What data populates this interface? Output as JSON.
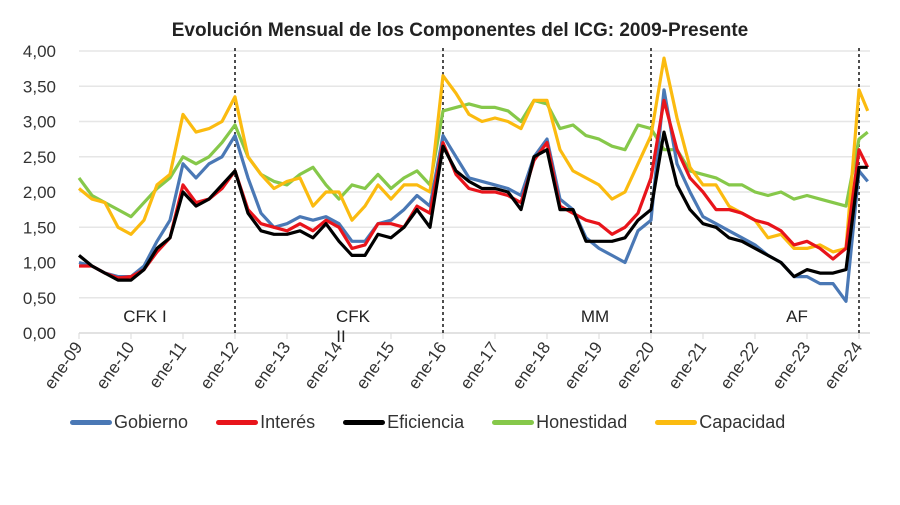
{
  "chart_data": {
    "type": "line",
    "title": "Evolución Mensual de los Componentes del ICG: 2009-Presente",
    "xlabel": "",
    "ylabel": "",
    "ylim": [
      0,
      4
    ],
    "y_ticks": [
      "0,00",
      "0,50",
      "1,00",
      "1,50",
      "2,00",
      "2,50",
      "3,00",
      "3,50",
      "4,00"
    ],
    "x_ticks": [
      "ene-09",
      "ene-10",
      "ene-11",
      "ene-12",
      "ene-13",
      "ene-14",
      "ene-15",
      "ene-16",
      "ene-17",
      "ene-18",
      "ene-19",
      "ene-20",
      "ene-21",
      "ene-22",
      "ene-23",
      "ene-24"
    ],
    "grid": true,
    "legend_position": "bottom",
    "periods": [
      {
        "label": "CFK I",
        "start": "2009-01",
        "end": "2012-01"
      },
      {
        "label": "CFK II",
        "start": "2012-01",
        "end": "2016-01"
      },
      {
        "label": "MM",
        "start": "2016-01",
        "end": "2020-01"
      },
      {
        "label": "AF",
        "start": "2020-01",
        "end": "2024-01"
      }
    ],
    "period_labels": {
      "cfk1": "CFK I",
      "cfk2a": "CFK",
      "cfk2b": "II",
      "mm": "MM",
      "af": "AF"
    },
    "x": [
      "2009-01",
      "2009-04",
      "2009-07",
      "2009-10",
      "2010-01",
      "2010-04",
      "2010-07",
      "2010-10",
      "2011-01",
      "2011-04",
      "2011-07",
      "2011-10",
      "2012-01",
      "2012-04",
      "2012-07",
      "2012-10",
      "2013-01",
      "2013-04",
      "2013-07",
      "2013-10",
      "2014-01",
      "2014-04",
      "2014-07",
      "2014-10",
      "2015-01",
      "2015-04",
      "2015-07",
      "2015-10",
      "2016-01",
      "2016-04",
      "2016-07",
      "2016-10",
      "2017-01",
      "2017-04",
      "2017-07",
      "2017-10",
      "2018-01",
      "2018-04",
      "2018-07",
      "2018-10",
      "2019-01",
      "2019-04",
      "2019-07",
      "2019-10",
      "2020-01",
      "2020-04",
      "2020-07",
      "2020-10",
      "2021-01",
      "2021-04",
      "2021-07",
      "2021-10",
      "2022-01",
      "2022-04",
      "2022-07",
      "2022-10",
      "2023-01",
      "2023-04",
      "2023-07",
      "2023-10",
      "2024-01",
      "2024-03"
    ],
    "series": [
      {
        "name": "Gobierno",
        "color": "#4a78b5",
        "values": [
          1.0,
          0.95,
          0.85,
          0.8,
          0.8,
          0.95,
          1.3,
          1.6,
          2.4,
          2.2,
          2.4,
          2.5,
          2.8,
          2.2,
          1.7,
          1.5,
          1.55,
          1.65,
          1.6,
          1.65,
          1.55,
          1.3,
          1.3,
          1.55,
          1.6,
          1.75,
          1.95,
          1.8,
          2.8,
          2.5,
          2.2,
          2.15,
          2.1,
          2.05,
          1.95,
          2.5,
          2.75,
          1.9,
          1.75,
          1.35,
          1.2,
          1.1,
          1.0,
          1.45,
          1.6,
          3.45,
          2.4,
          2.0,
          1.65,
          1.55,
          1.45,
          1.35,
          1.25,
          1.1,
          1.0,
          0.8,
          0.8,
          0.7,
          0.7,
          0.45,
          2.3,
          2.15
        ]
      },
      {
        "name": "Interés",
        "color": "#e8141b",
        "values": [
          0.95,
          0.95,
          0.85,
          0.78,
          0.8,
          0.9,
          1.15,
          1.35,
          2.1,
          1.85,
          1.9,
          2.05,
          2.3,
          1.75,
          1.55,
          1.5,
          1.45,
          1.55,
          1.45,
          1.6,
          1.5,
          1.2,
          1.25,
          1.55,
          1.55,
          1.5,
          1.8,
          1.7,
          2.7,
          2.25,
          2.05,
          2.0,
          2.0,
          1.95,
          1.85,
          2.45,
          2.7,
          1.8,
          1.7,
          1.6,
          1.55,
          1.4,
          1.5,
          1.7,
          2.2,
          3.3,
          2.6,
          2.2,
          2.0,
          1.75,
          1.75,
          1.7,
          1.6,
          1.55,
          1.45,
          1.25,
          1.3,
          1.2,
          1.05,
          1.2,
          2.6,
          2.35
        ]
      },
      {
        "name": "Eficiencia",
        "color": "#000000",
        "values": [
          1.1,
          0.95,
          0.85,
          0.75,
          0.75,
          0.9,
          1.2,
          1.35,
          2.0,
          1.8,
          1.9,
          2.1,
          2.3,
          1.7,
          1.45,
          1.4,
          1.4,
          1.45,
          1.35,
          1.55,
          1.3,
          1.1,
          1.1,
          1.4,
          1.35,
          1.5,
          1.75,
          1.5,
          2.65,
          2.3,
          2.15,
          2.05,
          2.05,
          2.0,
          1.75,
          2.5,
          2.6,
          1.75,
          1.75,
          1.3,
          1.3,
          1.3,
          1.35,
          1.6,
          1.75,
          2.85,
          2.1,
          1.75,
          1.55,
          1.5,
          1.35,
          1.3,
          1.2,
          1.1,
          1.0,
          0.8,
          0.9,
          0.85,
          0.85,
          0.9,
          2.35,
          2.35
        ]
      },
      {
        "name": "Honestidad",
        "color": "#86c84a",
        "values": [
          2.2,
          1.95,
          1.85,
          1.75,
          1.65,
          1.85,
          2.05,
          2.2,
          2.5,
          2.4,
          2.5,
          2.7,
          2.95,
          2.5,
          2.25,
          2.15,
          2.1,
          2.25,
          2.35,
          2.1,
          1.9,
          2.1,
          2.05,
          2.25,
          2.05,
          2.2,
          2.3,
          2.1,
          3.15,
          3.2,
          3.25,
          3.2,
          3.2,
          3.15,
          3.0,
          3.3,
          3.25,
          2.9,
          2.95,
          2.8,
          2.75,
          2.65,
          2.6,
          2.95,
          2.9,
          2.6,
          2.6,
          2.3,
          2.25,
          2.2,
          2.1,
          2.1,
          2.0,
          1.95,
          2.0,
          1.9,
          1.95,
          1.9,
          1.85,
          1.8,
          2.75,
          2.85
        ]
      },
      {
        "name": "Capacidad",
        "color": "#fbbb10",
        "values": [
          2.05,
          1.9,
          1.85,
          1.5,
          1.4,
          1.6,
          2.1,
          2.25,
          3.1,
          2.85,
          2.9,
          3.0,
          3.35,
          2.5,
          2.25,
          2.05,
          2.15,
          2.2,
          1.8,
          2.0,
          2.0,
          1.6,
          1.8,
          2.1,
          1.9,
          2.1,
          2.1,
          2.0,
          3.65,
          3.4,
          3.1,
          3.0,
          3.05,
          3.0,
          2.9,
          3.3,
          3.3,
          2.6,
          2.3,
          2.2,
          2.1,
          1.9,
          2.0,
          2.4,
          2.8,
          3.9,
          3.05,
          2.35,
          2.1,
          2.1,
          1.8,
          1.7,
          1.6,
          1.35,
          1.4,
          1.2,
          1.2,
          1.25,
          1.15,
          1.2,
          3.45,
          3.15
        ]
      }
    ]
  }
}
